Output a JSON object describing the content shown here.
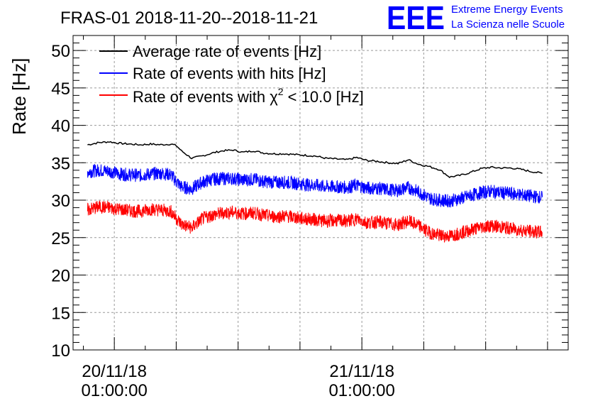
{
  "chart_data": {
    "type": "line",
    "title": "FRAS-01 2018-11-20--2018-11-21",
    "ylabel": "Rate [Hz]",
    "xlabel": "",
    "ylim": [
      10,
      52
    ],
    "yticks": [
      10,
      15,
      20,
      25,
      30,
      35,
      40,
      45,
      50
    ],
    "xlim_hours": [
      -4.0,
      44.0
    ],
    "xticks": [
      {
        "hour": 0,
        "date": "20/11/18",
        "time": "01:00:00"
      },
      {
        "hour": 24,
        "date": "21/11/18",
        "time": "01:00:00"
      }
    ],
    "legend_position": "top-left",
    "grid": true,
    "series": [
      {
        "name": "Average rate of events [Hz]",
        "color": "#000000",
        "x_hours": [
          -2.6,
          -1.5,
          -0.5,
          0.5,
          1.5,
          2.5,
          3.5,
          4.5,
          5.5,
          6.0,
          6.5,
          7.5,
          8.5,
          9.5,
          10.5,
          11.5,
          12.5,
          13.5,
          14.5,
          15.5,
          16.5,
          17.5,
          18.5,
          19.5,
          20.5,
          21.5,
          22.5,
          23.5,
          24.5,
          25.5,
          26.5,
          27.5,
          28.5,
          29.5,
          30.5,
          31.5,
          32.5,
          33.5,
          34.5,
          35.5,
          36.5,
          37.5,
          38.5,
          39.5,
          40.5,
          41.5
        ],
        "values": [
          37.4,
          37.7,
          37.8,
          37.6,
          37.5,
          37.4,
          37.5,
          37.4,
          37.5,
          37.3,
          36.6,
          35.6,
          35.9,
          36.3,
          36.6,
          36.7,
          36.4,
          36.6,
          36.3,
          36.2,
          36.2,
          36.1,
          36.0,
          35.9,
          35.6,
          35.5,
          35.4,
          35.7,
          35.3,
          35.2,
          35.0,
          34.9,
          35.4,
          34.8,
          34.5,
          34.1,
          33.1,
          33.3,
          33.7,
          34.2,
          34.4,
          34.3,
          34.3,
          34.1,
          33.8,
          33.6
        ]
      },
      {
        "name": "Rate of events with hits [Hz]",
        "color": "#0000ff",
        "x_hours": [
          -2.6,
          -1.5,
          -0.5,
          0.5,
          1.5,
          2.5,
          3.5,
          4.5,
          5.5,
          6.0,
          6.5,
          7.5,
          8.5,
          9.5,
          10.5,
          11.5,
          12.5,
          13.5,
          14.5,
          15.5,
          16.5,
          17.5,
          18.5,
          19.5,
          20.5,
          21.5,
          22.5,
          23.5,
          24.5,
          25.5,
          26.5,
          27.5,
          28.5,
          29.5,
          30.5,
          31.5,
          32.5,
          33.5,
          34.5,
          35.5,
          36.5,
          37.5,
          38.5,
          39.5,
          40.5,
          41.5
        ],
        "values": [
          33.8,
          34.0,
          33.9,
          33.5,
          33.4,
          33.3,
          33.5,
          33.6,
          33.4,
          32.5,
          31.8,
          31.5,
          32.4,
          32.8,
          32.9,
          32.9,
          32.7,
          32.8,
          32.5,
          32.4,
          32.4,
          32.3,
          32.1,
          32.0,
          31.8,
          31.8,
          31.7,
          32.0,
          31.6,
          31.6,
          31.4,
          31.3,
          31.7,
          31.1,
          30.3,
          30.0,
          29.9,
          30.2,
          30.6,
          31.0,
          31.2,
          31.0,
          30.9,
          30.7,
          30.5,
          30.4
        ]
      },
      {
        "name": "Rate of events with χ² < 10.0 [Hz]",
        "color": "#ff0000",
        "x_hours": [
          -2.6,
          -1.5,
          -0.5,
          0.5,
          1.5,
          2.5,
          3.5,
          4.5,
          5.5,
          6.0,
          6.5,
          7.5,
          8.5,
          9.5,
          10.5,
          11.5,
          12.5,
          13.5,
          14.5,
          15.5,
          16.5,
          17.5,
          18.5,
          19.5,
          20.5,
          21.5,
          22.5,
          23.5,
          24.5,
          25.5,
          26.5,
          27.5,
          28.5,
          29.5,
          30.5,
          31.5,
          32.5,
          33.5,
          34.5,
          35.5,
          36.5,
          37.5,
          38.5,
          39.5,
          40.5,
          41.5
        ],
        "values": [
          28.7,
          29.1,
          29.0,
          28.8,
          28.6,
          28.5,
          28.8,
          28.7,
          28.5,
          27.6,
          26.8,
          26.3,
          27.5,
          28.0,
          28.3,
          28.4,
          28.2,
          28.3,
          28.0,
          27.8,
          27.9,
          27.7,
          27.5,
          27.4,
          27.2,
          27.3,
          27.2,
          27.5,
          27.0,
          27.1,
          26.9,
          26.7,
          27.2,
          26.6,
          25.7,
          25.3,
          25.2,
          25.6,
          26.0,
          26.4,
          26.6,
          26.4,
          26.2,
          26.0,
          25.8,
          25.7
        ]
      }
    ]
  },
  "branding": {
    "logo_text": "EEE",
    "line1": "Extreme Energy Events",
    "line2": "La Scienza nelle Scuole",
    "color": "#0000ff"
  }
}
